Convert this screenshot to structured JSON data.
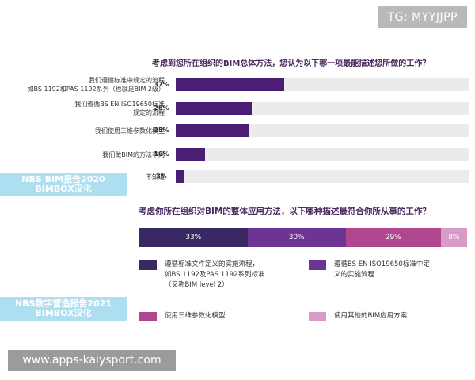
{
  "badge": "TG: MYYJJPP",
  "site": "www.apps-kaiysport.com",
  "watermarks": {
    "top": "NBS BIM报告2020\nBIMBOX汉化",
    "bottom": "NBS数字营造报告2021\nBIMBOX汉化"
  },
  "colors": {
    "bar": "#4a1e72",
    "track": "#ebebeb",
    "seg1": "#3a2862",
    "seg2": "#6c3593",
    "seg3": "#b04590",
    "seg4": "#d89bc7"
  },
  "chart_data": [
    {
      "type": "bar",
      "orientation": "horizontal",
      "title": "考虑到您所在组织的BIM总体方法，您认为以下哪一项最能描述您所做的工作？",
      "categories": [
        "我们遵循标准中规定的流程\n如BS 1192和PAS 1192系列（也就是BIM 2级）",
        "我们遵循BS EN ISO19650标准\n规定的流程",
        "我们使用三维参数化模型",
        "我们做BIM的方法不同",
        "不知道"
      ],
      "values": [
        37,
        26,
        25,
        10,
        3
      ],
      "value_labels": [
        "37%",
        "26%",
        "25%",
        "10%",
        "3%"
      ],
      "xlim": [
        0,
        100
      ],
      "grid": false
    },
    {
      "type": "bar",
      "orientation": "stacked-horizontal",
      "title": "考虑你所在组织对BIM的整体应用方法，以下哪种描述最符合你所从事的工作？",
      "series": [
        {
          "name": "遵循标准文件定义的实施流程，\n如BS 1192及PAS 1192系列标准\n（又称BIM level 2）",
          "value": 33,
          "label": "33%"
        },
        {
          "name": "遵循BS EN ISO19650标准中定\n义的实施流程",
          "value": 30,
          "label": "30%"
        },
        {
          "name": "使用三维参数化模型",
          "value": 29,
          "label": "29%"
        },
        {
          "name": "使用其他的BIM应用方案",
          "value": 8,
          "label": "8%"
        }
      ],
      "legend": "bottom"
    }
  ]
}
